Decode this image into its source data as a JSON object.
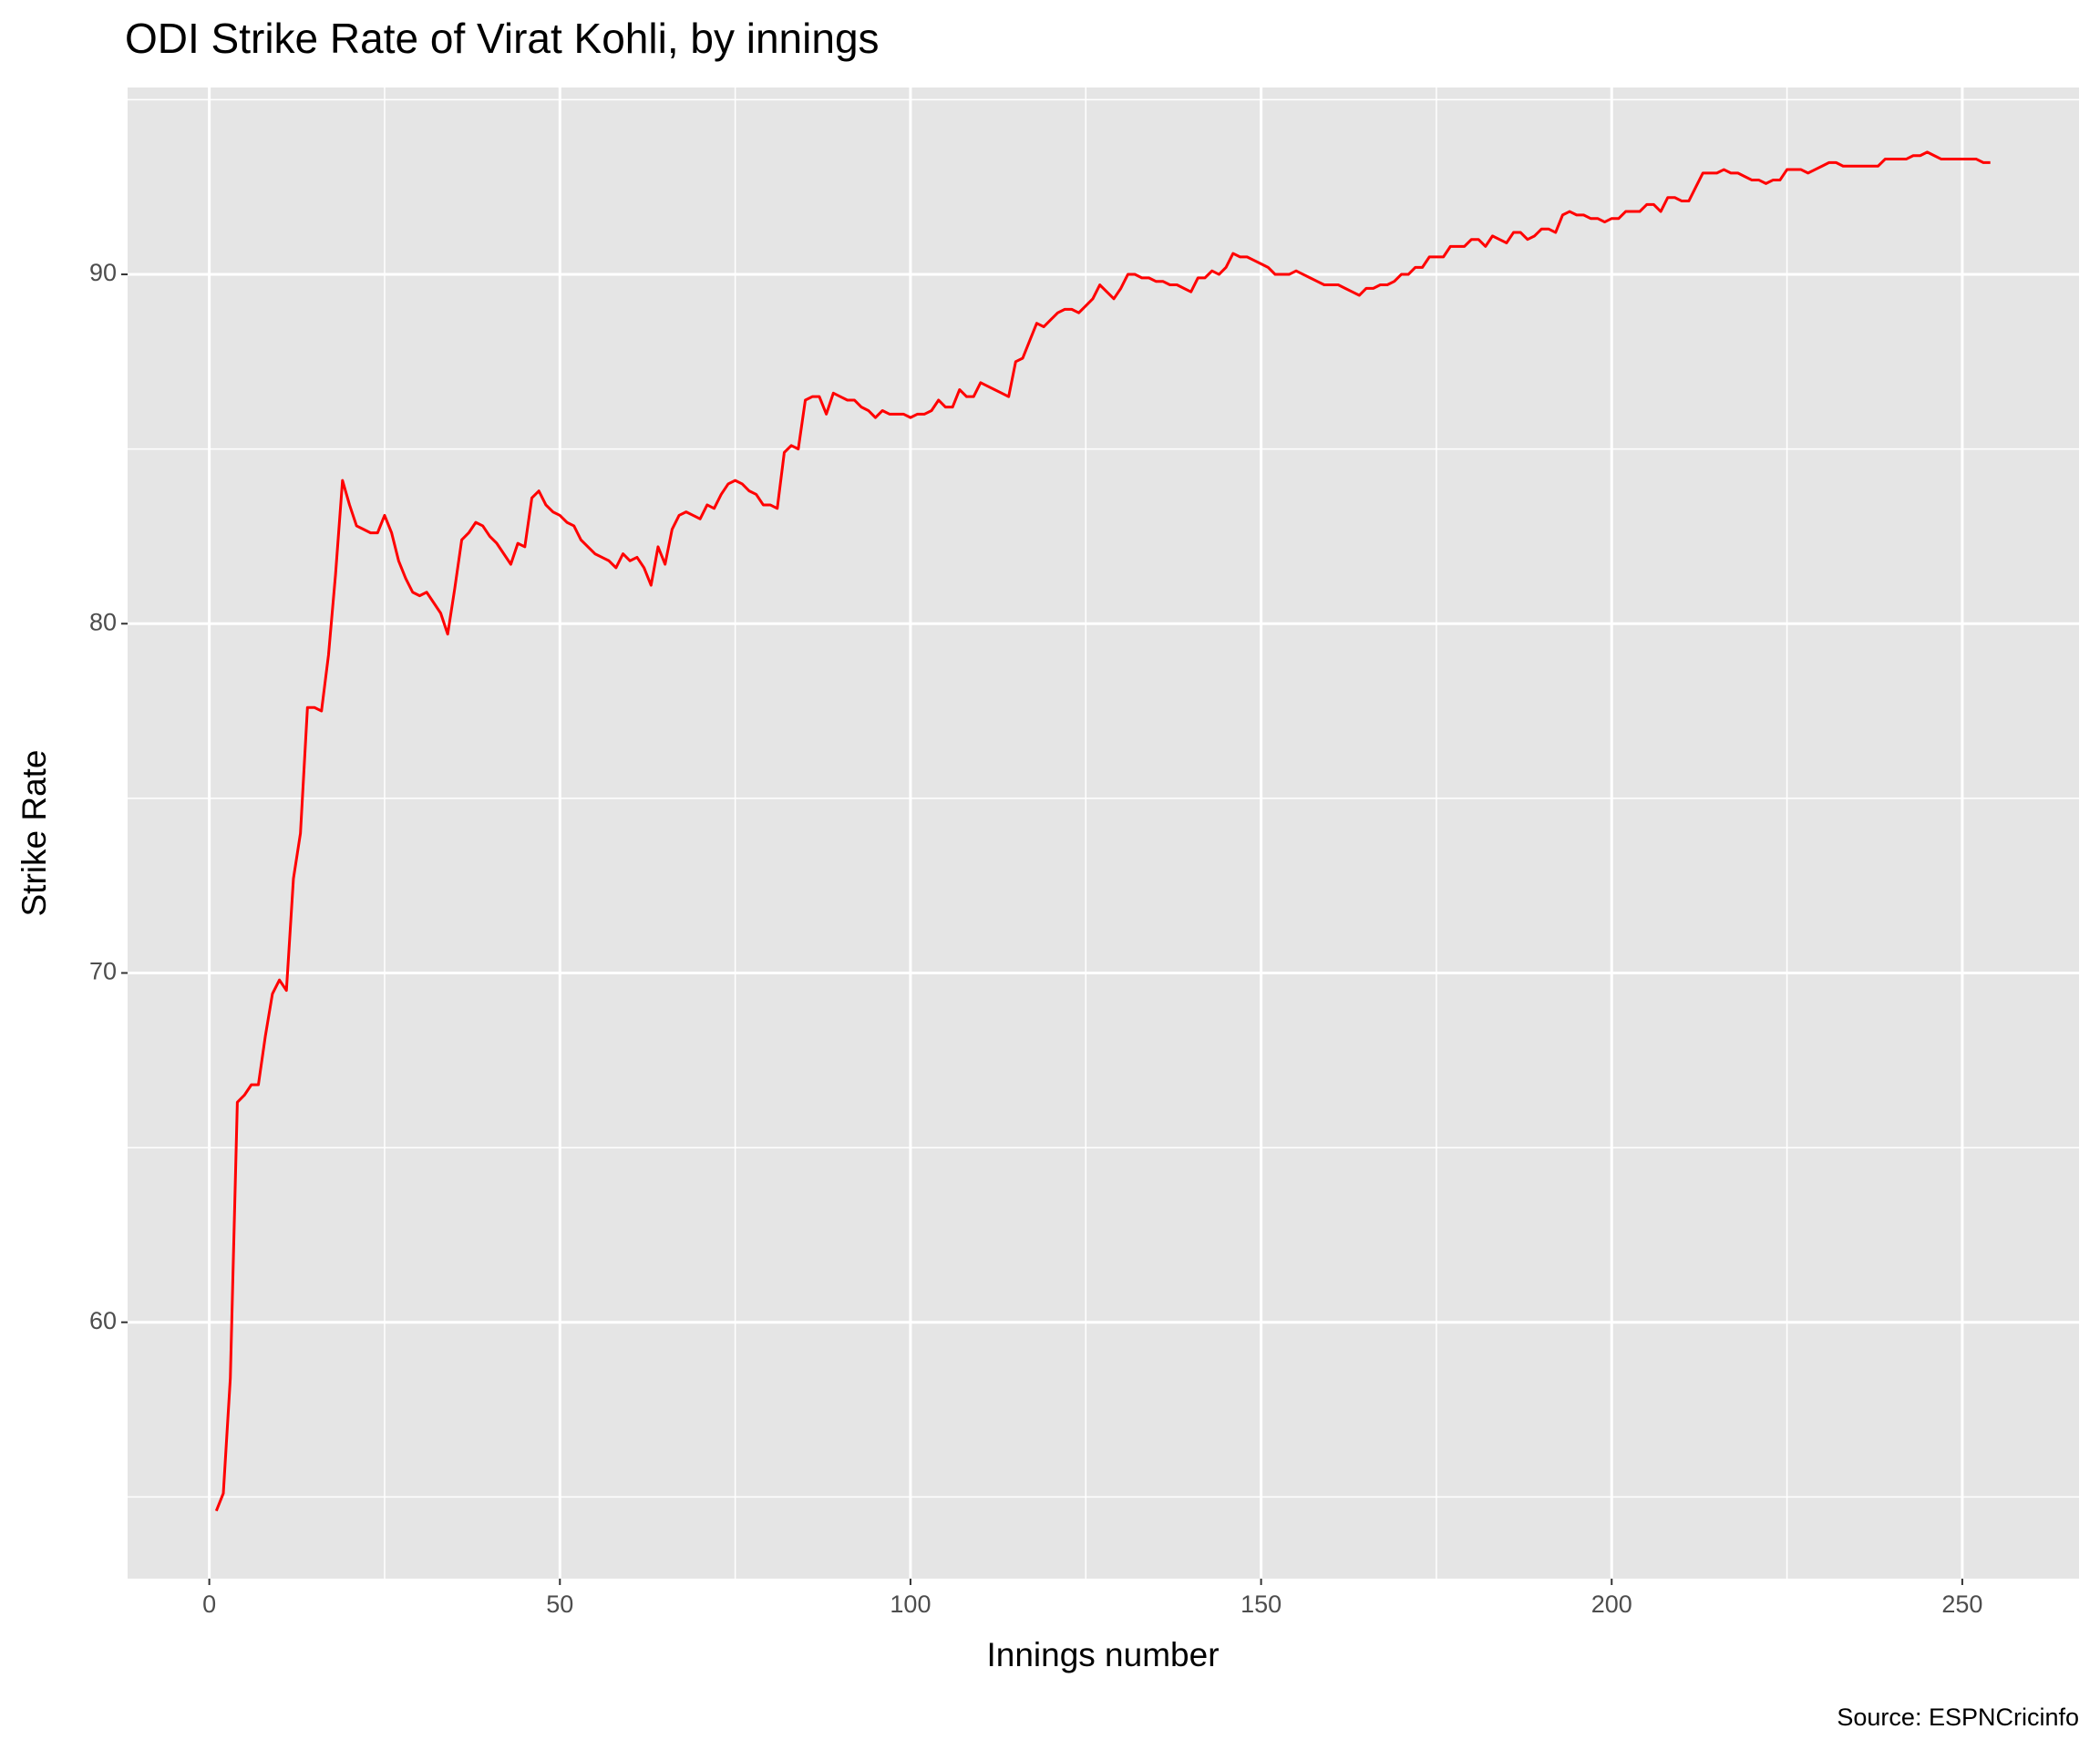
{
  "chart_data": {
    "type": "line",
    "title": "ODI Strike Rate of Virat Kohli, by innings",
    "x_label": "Innings number",
    "y_label": "Strike Rate",
    "source": "Source: ESPNCricinfo",
    "color": "#ff0000",
    "grid": true,
    "xlim": [
      -11.65,
      266.65
    ],
    "ylim": [
      52.66,
      95.35
    ],
    "xticks": [
      0,
      50,
      100,
      150,
      200,
      250
    ],
    "yticks": [
      60,
      70,
      80,
      90
    ],
    "x": [
      1,
      2,
      3,
      4,
      5,
      6,
      7,
      8,
      9,
      10,
      11,
      12,
      13,
      14,
      15,
      16,
      17,
      18,
      19,
      20,
      21,
      22,
      23,
      24,
      25,
      26,
      27,
      28,
      29,
      30,
      31,
      32,
      33,
      34,
      35,
      36,
      37,
      38,
      39,
      40,
      41,
      42,
      43,
      44,
      45,
      46,
      47,
      48,
      49,
      50,
      51,
      52,
      53,
      54,
      55,
      56,
      57,
      58,
      59,
      60,
      61,
      62,
      63,
      64,
      65,
      66,
      67,
      68,
      69,
      70,
      71,
      72,
      73,
      74,
      75,
      76,
      77,
      78,
      79,
      80,
      81,
      82,
      83,
      84,
      85,
      86,
      87,
      88,
      89,
      90,
      91,
      92,
      93,
      94,
      95,
      96,
      97,
      98,
      99,
      100,
      101,
      102,
      103,
      104,
      105,
      106,
      107,
      108,
      109,
      110,
      111,
      112,
      113,
      114,
      115,
      116,
      117,
      118,
      119,
      120,
      121,
      122,
      123,
      124,
      125,
      126,
      127,
      128,
      129,
      130,
      131,
      132,
      133,
      134,
      135,
      136,
      137,
      138,
      139,
      140,
      141,
      142,
      143,
      144,
      145,
      146,
      147,
      148,
      149,
      150,
      151,
      152,
      153,
      154,
      155,
      156,
      157,
      158,
      159,
      160,
      161,
      162,
      163,
      164,
      165,
      166,
      167,
      168,
      169,
      170,
      171,
      172,
      173,
      174,
      175,
      176,
      177,
      178,
      179,
      180,
      181,
      182,
      183,
      184,
      185,
      186,
      187,
      188,
      189,
      190,
      191,
      192,
      193,
      194,
      195,
      196,
      197,
      198,
      199,
      200,
      201,
      202,
      203,
      204,
      205,
      206,
      207,
      208,
      209,
      210,
      211,
      212,
      213,
      214,
      215,
      216,
      217,
      218,
      219,
      220,
      221,
      222,
      223,
      224,
      225,
      226,
      227,
      228,
      229,
      230,
      231,
      232,
      233,
      234,
      235,
      236,
      237,
      238,
      239,
      240,
      241,
      242,
      243,
      244,
      245,
      246,
      247,
      248,
      249,
      250,
      251,
      252,
      253,
      254
    ],
    "values": [
      54.6,
      55.1,
      58.4,
      66.3,
      66.5,
      66.8,
      66.8,
      68.2,
      69.4,
      69.8,
      69.5,
      72.7,
      74.0,
      77.6,
      77.6,
      77.5,
      79.1,
      81.4,
      84.1,
      83.4,
      82.8,
      82.7,
      82.6,
      82.6,
      83.1,
      82.6,
      81.8,
      81.3,
      80.9,
      80.8,
      80.9,
      80.6,
      80.3,
      79.7,
      81.0,
      82.4,
      82.6,
      82.9,
      82.8,
      82.5,
      82.3,
      82.0,
      81.7,
      82.3,
      82.2,
      83.6,
      83.8,
      83.4,
      83.2,
      83.1,
      82.9,
      82.8,
      82.4,
      82.2,
      82.0,
      81.9,
      81.8,
      81.6,
      82.0,
      81.8,
      81.9,
      81.6,
      81.1,
      82.2,
      81.7,
      82.7,
      83.1,
      83.2,
      83.1,
      83.0,
      83.4,
      83.3,
      83.7,
      84.0,
      84.1,
      84.0,
      83.8,
      83.7,
      83.4,
      83.4,
      83.3,
      84.9,
      85.1,
      85.0,
      86.4,
      86.5,
      86.5,
      86.0,
      86.6,
      86.5,
      86.4,
      86.4,
      86.2,
      86.1,
      85.9,
      86.1,
      86.0,
      86.0,
      86.0,
      85.9,
      86.0,
      86.0,
      86.1,
      86.4,
      86.2,
      86.2,
      86.7,
      86.5,
      86.5,
      86.9,
      86.8,
      86.7,
      86.6,
      86.5,
      87.5,
      87.6,
      88.1,
      88.6,
      88.5,
      88.7,
      88.9,
      89.0,
      89.0,
      88.9,
      89.1,
      89.3,
      89.7,
      89.5,
      89.3,
      89.6,
      90.0,
      90.0,
      89.9,
      89.9,
      89.8,
      89.8,
      89.7,
      89.7,
      89.6,
      89.5,
      89.9,
      89.9,
      90.1,
      90.0,
      90.2,
      90.6,
      90.5,
      90.5,
      90.4,
      90.3,
      90.2,
      90.0,
      90.0,
      90.0,
      90.1,
      90.0,
      89.9,
      89.8,
      89.7,
      89.7,
      89.7,
      89.6,
      89.5,
      89.4,
      89.6,
      89.6,
      89.7,
      89.7,
      89.8,
      90.0,
      90.0,
      90.2,
      90.2,
      90.5,
      90.5,
      90.5,
      90.8,
      90.8,
      90.8,
      91.0,
      91.0,
      90.8,
      91.1,
      91.0,
      90.9,
      91.2,
      91.2,
      91.0,
      91.1,
      91.3,
      91.3,
      91.2,
      91.7,
      91.8,
      91.7,
      91.7,
      91.6,
      91.6,
      91.5,
      91.6,
      91.6,
      91.8,
      91.8,
      91.8,
      92.0,
      92.0,
      91.8,
      92.2,
      92.2,
      92.1,
      92.1,
      92.5,
      92.9,
      92.9,
      92.9,
      93.0,
      92.9,
      92.9,
      92.8,
      92.7,
      92.7,
      92.6,
      92.7,
      92.7,
      93.0,
      93.0,
      93.0,
      92.9,
      93.0,
      93.1,
      93.2,
      93.2,
      93.1,
      93.1,
      93.1,
      93.1,
      93.1,
      93.1,
      93.3,
      93.3,
      93.3,
      93.3,
      93.4,
      93.4,
      93.5,
      93.4,
      93.3,
      93.3,
      93.3,
      93.3,
      93.3,
      93.3,
      93.2,
      93.2
    ]
  }
}
